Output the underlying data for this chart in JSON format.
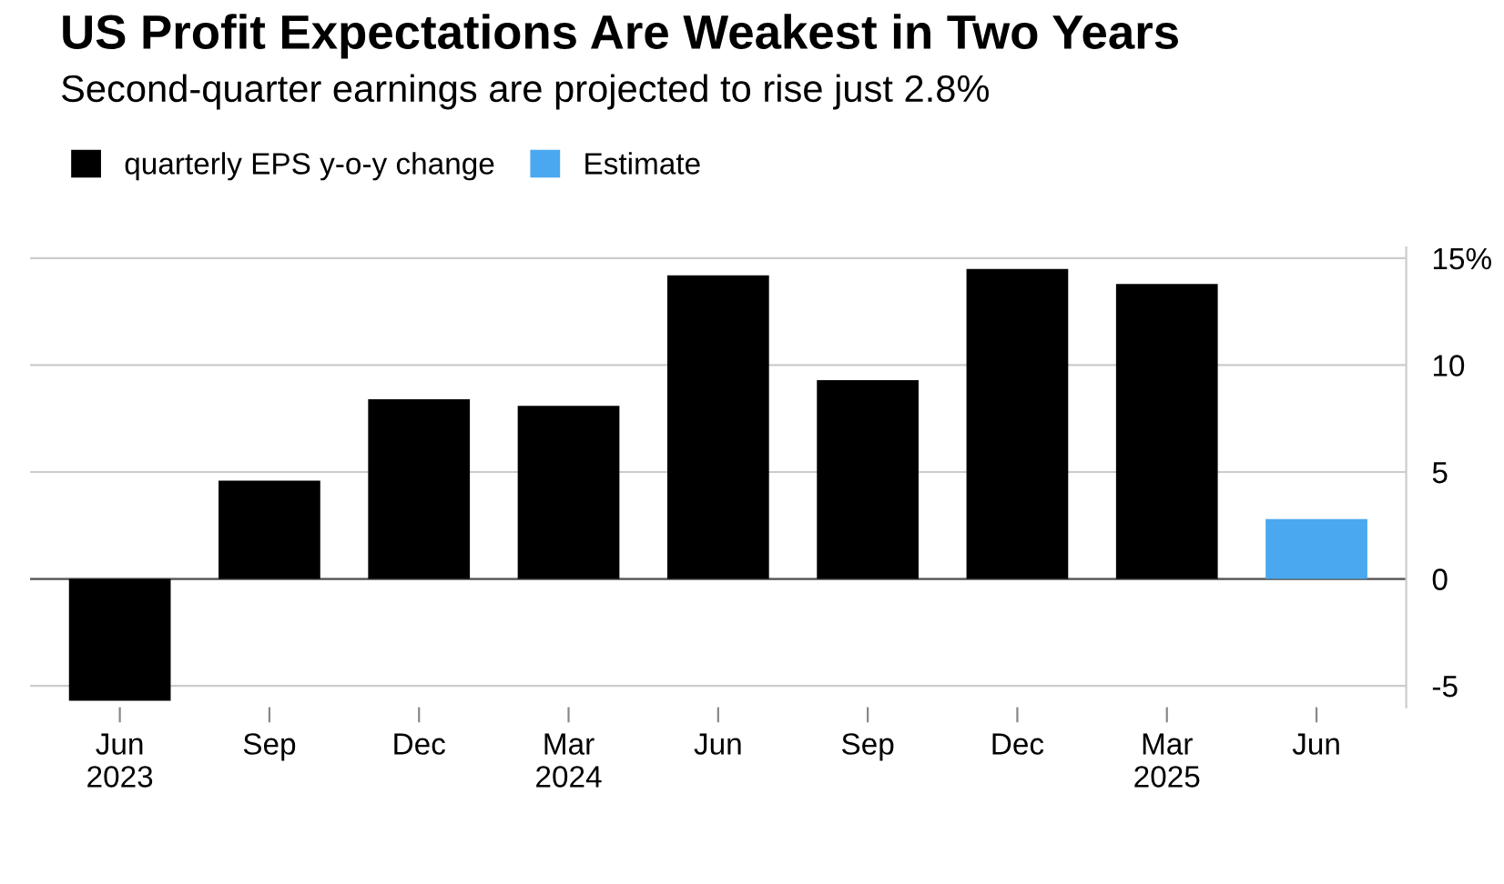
{
  "chart_data": {
    "type": "bar",
    "title": "US Profit Expectations Are Weakest in Two Years",
    "subtitle": "Second-quarter earnings are projected to rise just 2.8%",
    "categories": [
      "Jun\n2023",
      "Sep",
      "Dec",
      "Mar\n2024",
      "Jun",
      "Sep",
      "Dec",
      "Mar\n2025",
      "Jun"
    ],
    "series": [
      {
        "name": "quarterly EPS y-o-y change",
        "color": "#000000",
        "values": [
          -5.7,
          4.6,
          8.4,
          8.1,
          14.2,
          9.3,
          14.5,
          13.8,
          null
        ]
      },
      {
        "name": "Estimate",
        "color": "#4aa8f0",
        "values": [
          null,
          null,
          null,
          null,
          null,
          null,
          null,
          null,
          2.8
        ]
      }
    ],
    "ylim": [
      -6,
      15.5
    ],
    "yticks": [
      {
        "value": 15,
        "label": "15%"
      },
      10,
      5,
      0,
      -5
    ],
    "grid": "y",
    "legend": "top left"
  }
}
